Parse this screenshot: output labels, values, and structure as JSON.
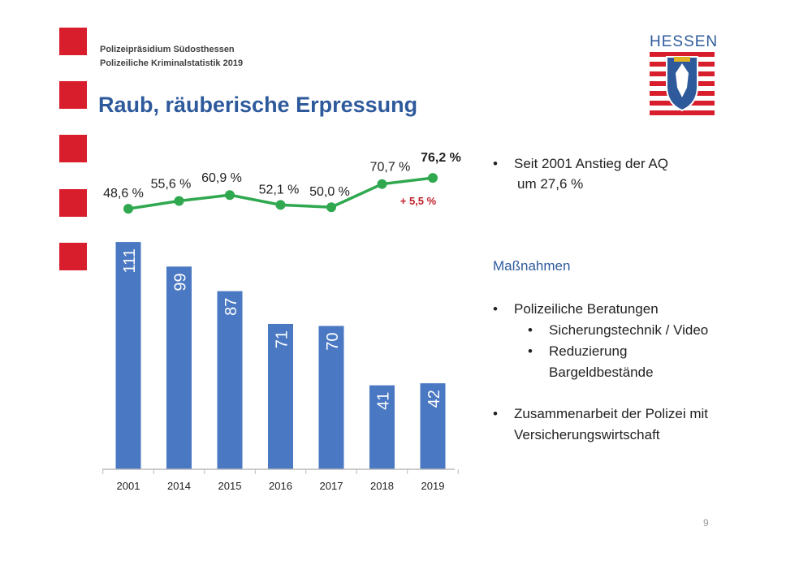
{
  "header": {
    "line1": "Polizeipräsidium Südosthessen",
    "line2": "Polizeiliche Kriminalstatistik 2019",
    "title": "Raub, räuberische Erpressung"
  },
  "logo": {
    "text": "HESSEN"
  },
  "colors": {
    "accent_red": "#d81e2c",
    "bar_blue": "#4a78c2",
    "line_green": "#2fa84f",
    "title_blue": "#2e5a9c",
    "change_red": "#c0202a"
  },
  "chart_data": [
    {
      "type": "bar",
      "categories": [
        "2001",
        "2014",
        "2015",
        "2016",
        "2017",
        "2018",
        "2019"
      ],
      "values": [
        111,
        99,
        87,
        71,
        70,
        41,
        42
      ],
      "ylim": [
        0,
        115
      ],
      "grid": false
    },
    {
      "type": "line",
      "categories": [
        "2001",
        "2014",
        "2015",
        "2016",
        "2017",
        "2018",
        "2019"
      ],
      "values": [
        48.6,
        55.6,
        60.9,
        52.1,
        50.0,
        70.7,
        76.2
      ],
      "labels": [
        "48,6 %",
        "55,6 %",
        "60,9 %",
        "52,1 %",
        "50,0 %",
        "70,7 %",
        "76,2 %"
      ],
      "annotation": "+ 5,5 %",
      "ylim": [
        48,
        77
      ]
    }
  ],
  "right": {
    "bullet1_line1": "Seit 2001 Anstieg der AQ",
    "bullet1_line2": "um 27,6 %",
    "heading": "Maßnahmen",
    "bullet2": "Polizeiliche Beratungen",
    "sub1": "Sicherungstechnik / Video",
    "sub2_line1": "Reduzierung",
    "sub2_line2": "Bargeldbestände",
    "bullet3_line1": "Zusammenarbeit der Polizei mit",
    "bullet3_line2": "Versicherungswirtschaft",
    "bullet_char": "•"
  },
  "page_number": "9"
}
